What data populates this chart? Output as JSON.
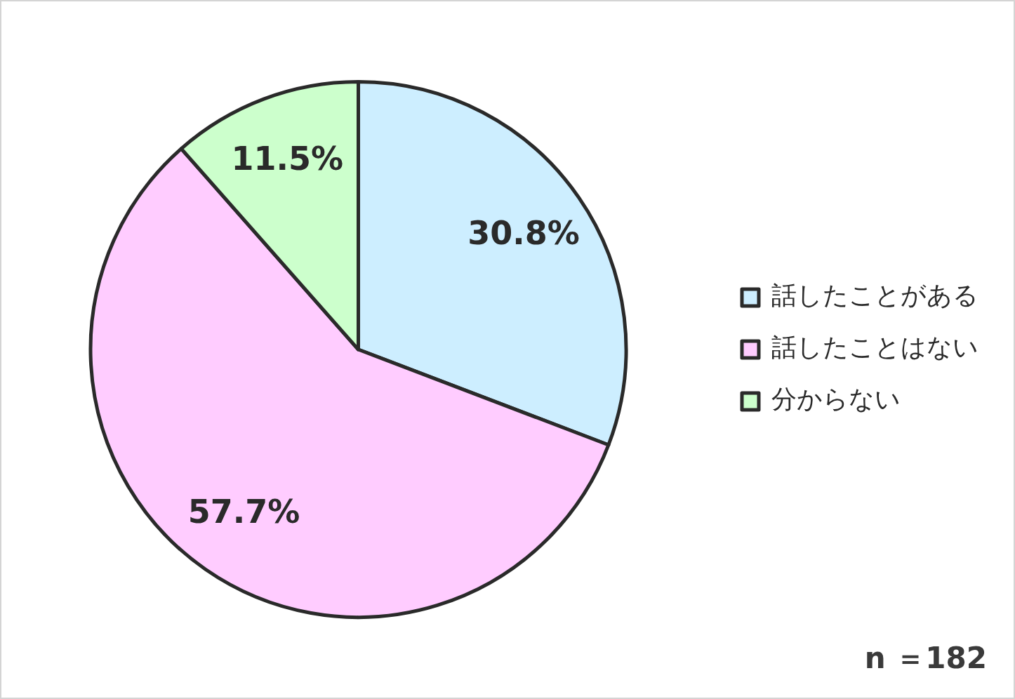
{
  "chart_data": {
    "type": "pie",
    "categories": [
      "話したことがある",
      "話したことはない",
      "分からない"
    ],
    "values": [
      30.8,
      57.7,
      11.5
    ],
    "colors": [
      "#cdeeff",
      "#ffccff",
      "#ccffcc"
    ],
    "value_labels": [
      "30.8%",
      "57.7%",
      "11.5%"
    ],
    "legend": "right",
    "annotations": [
      "n ＝182"
    ]
  }
}
